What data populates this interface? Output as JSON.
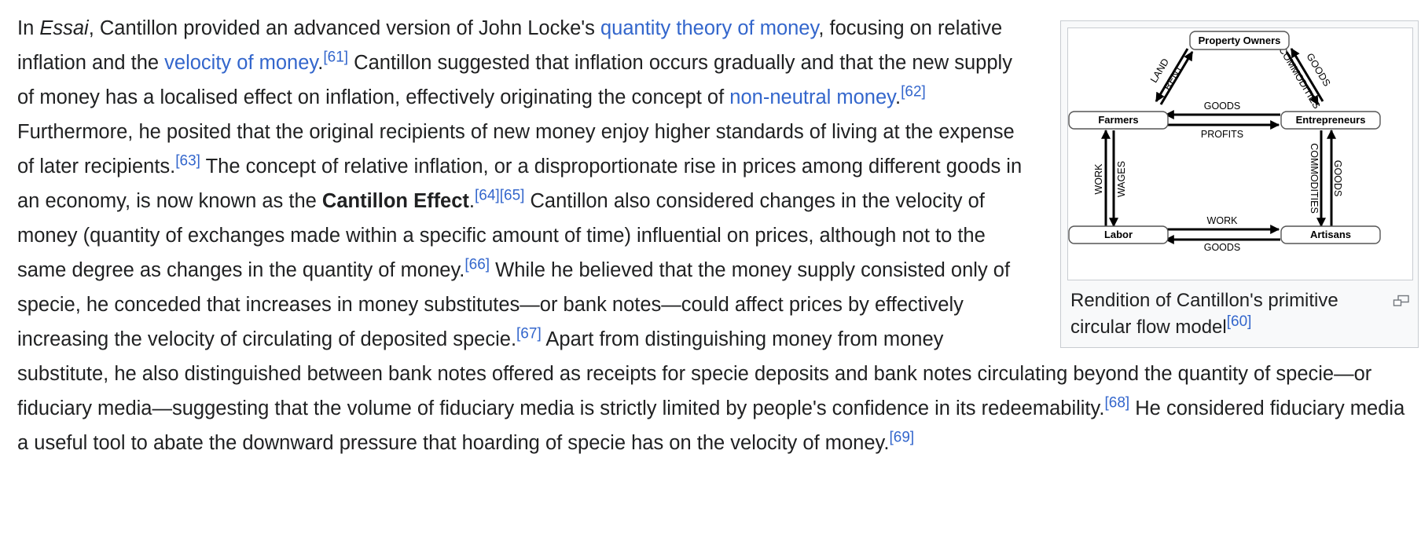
{
  "article": {
    "s1_a": "In ",
    "s1_essai": "Essai",
    "s1_b": ", Cantillon provided an advanced version of John Locke's ",
    "link_qtm": "quantity theory of money",
    "s1_c": ", focusing on relative inflation and the ",
    "link_velocity": "velocity of money",
    "s1_d": ".",
    "ref61": "[61]",
    "s2_a": " Cantillon suggested that inflation occurs gradually and that the new supply of money has a localised effect on inflation, effectively originating the concept of ",
    "link_nonneutral": "non-neutral money",
    "s2_b": ".",
    "ref62": "[62]",
    "s3": " Furthermore, he posited that the original recipients of new money enjoy higher standards of living at the expense of later recipients.",
    "ref63": "[63]",
    "s4_a": " The concept of relative inflation, or a disproportionate rise in prices among different goods in an economy, is now known as the ",
    "s4_bold": "Cantillon Effect",
    "s4_b": ".",
    "ref64": "[64]",
    "ref65": "[65]",
    "s5": " Cantillon also considered changes in the velocity of money (quantity of exchanges made within a specific amount of time) influential on prices, although not to the same degree as changes in the quantity of money.",
    "ref66": "[66]",
    "s6": " While he believed that the money supply consisted only of specie, he conceded that increases in money substitutes—or bank notes—could affect prices by effectively increasing the velocity of circulating of deposited specie.",
    "ref67": "[67]",
    "s7": " Apart from distinguishing money from money substitute, he also distinguished between bank notes offered as receipts for specie deposits and bank notes circulating beyond the quantity of specie—or fiduciary media—suggesting that the volume of fiduciary media is strictly limited by people's confidence in its redeemability.",
    "ref68": "[68]",
    "s8": " He considered fiduciary media a useful tool to abate the downward pressure that hoarding of specie has on the velocity of money.",
    "ref69": "[69]"
  },
  "figure": {
    "caption": "Rendition of Cantillon's primitive circular flow model",
    "caption_ref": "[60]",
    "enlarge_icon": "enlarge-icon",
    "diagram": {
      "nodes": {
        "property_owners": "Property Owners",
        "farmers": "Farmers",
        "entrepreneurs": "Entrepreneurs",
        "labor": "Labor",
        "artisans": "Artisans"
      },
      "labels": {
        "land": "LAND",
        "rent": "RENT",
        "commodities_top": "COMMODITIES",
        "goods_top": "GOODS",
        "goods_mid": "GOODS",
        "profits": "PROFITS",
        "work_left": "WORK",
        "wages": "WAGES",
        "commodities_right": "COMMODITIES",
        "goods_right": "GOODS",
        "work_bottom": "WORK",
        "goods_bottom": "GOODS"
      }
    }
  },
  "colors": {
    "link": "#3366cc",
    "text": "#202122",
    "frame_border": "#c8ccd1",
    "frame_bg": "#f8f9fa"
  }
}
